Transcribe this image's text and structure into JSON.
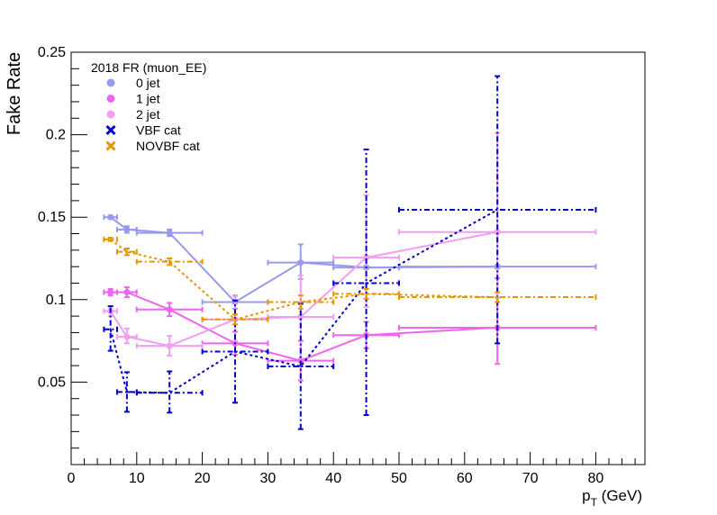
{
  "chart_data": {
    "type": "scatter",
    "title": "",
    "xlabel": "p",
    "xlabel_sub": "T",
    "xlabel_unit": " (GeV)",
    "ylabel": "Fake Rate",
    "xlim": [
      0,
      87.5
    ],
    "ylim": [
      0,
      0.25
    ],
    "xticks": [
      0,
      10,
      20,
      30,
      40,
      50,
      60,
      70,
      80
    ],
    "yticks": [
      0.05,
      0.1,
      0.15,
      0.2,
      0.25
    ],
    "ytick_labels": [
      "0.05",
      "0.1",
      "0.15",
      "0.2",
      "0.25"
    ],
    "legend": {
      "title": "2018 FR (muon_EE)",
      "placement": "top-left"
    },
    "series": [
      {
        "name": "0 jet",
        "color": "#9999ee",
        "marker": "circle",
        "dash": "none",
        "legend_marker": "circle",
        "legend_color": "#9999ee",
        "points": [
          {
            "x": 6,
            "xlo": 5,
            "xhi": 7,
            "y": 0.15,
            "elo": 0.001,
            "ehi": 0.001
          },
          {
            "x": 8.5,
            "xlo": 7,
            "xhi": 10,
            "y": 0.1425,
            "elo": 0.002,
            "ehi": 0.002
          },
          {
            "x": 15,
            "xlo": 10,
            "xhi": 20,
            "y": 0.1405,
            "elo": 0.002,
            "ehi": 0.002
          },
          {
            "x": 25,
            "xlo": 20,
            "xhi": 30,
            "y": 0.0985,
            "elo": 0.004,
            "ehi": 0.004
          },
          {
            "x": 35,
            "xlo": 30,
            "xhi": 40,
            "y": 0.1225,
            "elo": 0.01,
            "ehi": 0.011
          },
          {
            "x": 45,
            "xlo": 40,
            "xhi": 50,
            "y": 0.1195,
            "elo": 0.001,
            "ehi": 0.001
          },
          {
            "x": 65,
            "xlo": 50,
            "xhi": 80,
            "y": 0.12,
            "elo": 0.001,
            "ehi": 0.001
          }
        ]
      },
      {
        "name": "1 jet",
        "color": "#ee66ee",
        "marker": "circle",
        "dash": "none",
        "legend_marker": "circle",
        "legend_color": "#ee66ee",
        "points": [
          {
            "x": 6,
            "xlo": 5,
            "xhi": 7,
            "y": 0.1045,
            "elo": 0.002,
            "ehi": 0.002
          },
          {
            "x": 8.5,
            "xlo": 7,
            "xhi": 10,
            "y": 0.1045,
            "elo": 0.003,
            "ehi": 0.003
          },
          {
            "x": 15,
            "xlo": 10,
            "xhi": 20,
            "y": 0.094,
            "elo": 0.004,
            "ehi": 0.004
          },
          {
            "x": 25,
            "xlo": 20,
            "xhi": 30,
            "y": 0.0735,
            "elo": 0.007,
            "ehi": 0.007
          },
          {
            "x": 35,
            "xlo": 30,
            "xhi": 40,
            "y": 0.063,
            "elo": 0.012,
            "ehi": 0.012
          },
          {
            "x": 45,
            "xlo": 40,
            "xhi": 50,
            "y": 0.0785,
            "elo": 0.008,
            "ehi": 0.008
          },
          {
            "x": 65,
            "xlo": 50,
            "xhi": 80,
            "y": 0.083,
            "elo": 0.022,
            "ehi": 0.03
          }
        ]
      },
      {
        "name": "2 jet",
        "color": "#f19ff1",
        "marker": "circle",
        "dash": "none",
        "legend_marker": "circle",
        "legend_color": "#f19ff1",
        "points": [
          {
            "x": 6,
            "xlo": 5,
            "xhi": 7,
            "y": 0.093,
            "elo": 0.003,
            "ehi": 0.003
          },
          {
            "x": 8.5,
            "xlo": 7,
            "xhi": 10,
            "y": 0.0775,
            "elo": 0.004,
            "ehi": 0.005
          },
          {
            "x": 15,
            "xlo": 10,
            "xhi": 20,
            "y": 0.072,
            "elo": 0.006,
            "ehi": 0.006
          },
          {
            "x": 25,
            "xlo": 20,
            "xhi": 30,
            "y": 0.088,
            "elo": 0.013,
            "ehi": 0.014
          },
          {
            "x": 35,
            "xlo": 30,
            "xhi": 40,
            "y": 0.0895,
            "elo": 0.025,
            "ehi": 0.025
          },
          {
            "x": 45,
            "xlo": 40,
            "xhi": 50,
            "y": 0.1255,
            "elo": 0.03,
            "ehi": 0.038
          },
          {
            "x": 65,
            "xlo": 50,
            "xhi": 80,
            "y": 0.141,
            "elo": 0.04,
            "ehi": 0.06
          }
        ]
      },
      {
        "name": "VBF cat",
        "color": "#0000cc",
        "marker": "none",
        "dash": "dashdot",
        "legend_marker": "x",
        "legend_color": "#0000cc",
        "points": [
          {
            "x": 6,
            "xlo": 5,
            "xhi": 7,
            "y": 0.082,
            "elo": 0.013,
            "ehi": 0.014
          },
          {
            "x": 8.5,
            "xlo": 7,
            "xhi": 10,
            "y": 0.044,
            "elo": 0.012,
            "ehi": 0.012
          },
          {
            "x": 15,
            "xlo": 10,
            "xhi": 20,
            "y": 0.0435,
            "elo": 0.012,
            "ehi": 0.013
          },
          {
            "x": 25,
            "xlo": 20,
            "xhi": 30,
            "y": 0.0685,
            "elo": 0.031,
            "ehi": 0.031
          },
          {
            "x": 35,
            "xlo": 30,
            "xhi": 40,
            "y": 0.0595,
            "elo": 0.038,
            "ehi": 0.038
          },
          {
            "x": 45,
            "xlo": 40,
            "xhi": 50,
            "y": 0.11,
            "elo": 0.08,
            "ehi": 0.081
          },
          {
            "x": 65,
            "xlo": 50,
            "xhi": 80,
            "y": 0.1545,
            "elo": 0.081,
            "ehi": 0.081
          }
        ]
      },
      {
        "name": "NOVBF cat",
        "color": "#e69500",
        "marker": "none",
        "dash": "dashdot",
        "legend_marker": "x",
        "legend_color": "#e69500",
        "points": [
          {
            "x": 6,
            "xlo": 5,
            "xhi": 7,
            "y": 0.1365,
            "elo": 0.001,
            "ehi": 0.001
          },
          {
            "x": 8.5,
            "xlo": 7,
            "xhi": 10,
            "y": 0.129,
            "elo": 0.002,
            "ehi": 0.002
          },
          {
            "x": 15,
            "xlo": 10,
            "xhi": 20,
            "y": 0.123,
            "elo": 0.002,
            "ehi": 0.002
          },
          {
            "x": 25,
            "xlo": 20,
            "xhi": 30,
            "y": 0.088,
            "elo": 0.003,
            "ehi": 0.003
          },
          {
            "x": 35,
            "xlo": 30,
            "xhi": 40,
            "y": 0.0985,
            "elo": 0.004,
            "ehi": 0.004
          },
          {
            "x": 45,
            "xlo": 40,
            "xhi": 50,
            "y": 0.1035,
            "elo": 0.003,
            "ehi": 0.003
          },
          {
            "x": 65,
            "xlo": 50,
            "xhi": 80,
            "y": 0.1015,
            "elo": 0.003,
            "ehi": 0.003
          }
        ]
      }
    ]
  }
}
